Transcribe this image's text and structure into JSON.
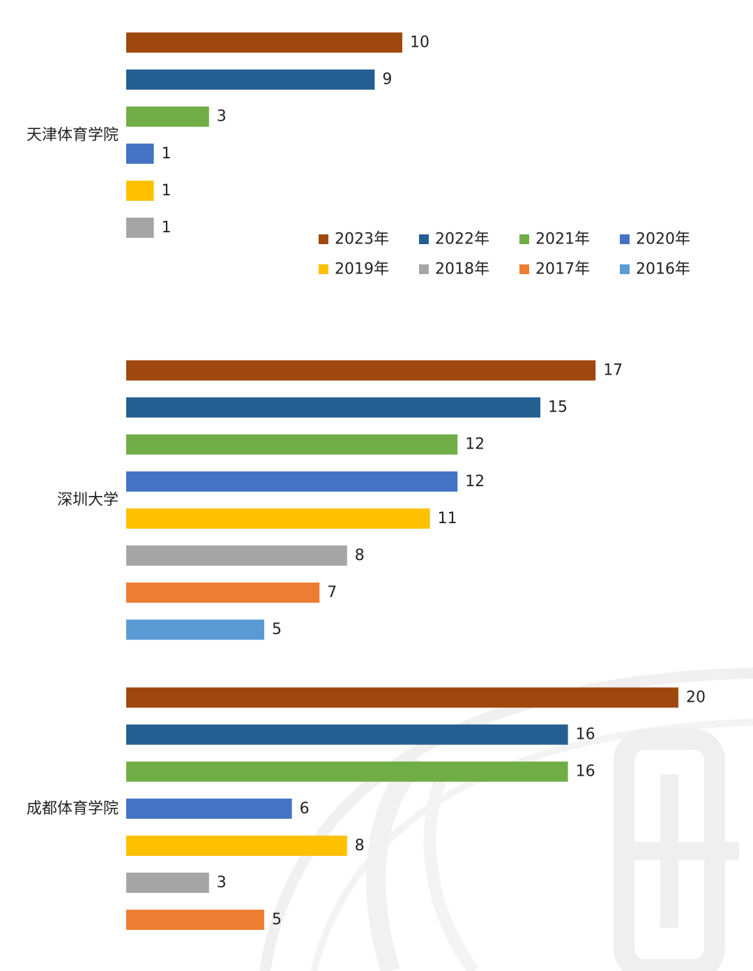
{
  "chart_data": {
    "type": "bar",
    "orientation": "horizontal",
    "legend": {
      "placement": "right, below first group",
      "entries": [
        {
          "name": "2023年",
          "color": "#9e480e"
        },
        {
          "name": "2022年",
          "color": "#255e91"
        },
        {
          "name": "2021年",
          "color": "#70ad47"
        },
        {
          "name": "2020年",
          "color": "#4472c4"
        },
        {
          "name": "2019年",
          "color": "#ffc000"
        },
        {
          "name": "2018年",
          "color": "#a5a5a5"
        },
        {
          "name": "2017年",
          "color": "#ed7d31"
        },
        {
          "name": "2016年",
          "color": "#5b9bd5"
        }
      ]
    },
    "grid": false,
    "groups": [
      {
        "category": "天津体育学院",
        "bars": [
          {
            "series": "2023年",
            "value": 10
          },
          {
            "series": "2022年",
            "value": 9
          },
          {
            "series": "2021年",
            "value": 3
          },
          {
            "series": "2020年",
            "value": 1
          },
          {
            "series": "2019年",
            "value": 1
          },
          {
            "series": "2018年",
            "value": 1
          }
        ]
      },
      {
        "category": "深圳大学",
        "bars": [
          {
            "series": "2023年",
            "value": 17
          },
          {
            "series": "2022年",
            "value": 15
          },
          {
            "series": "2021年",
            "value": 12
          },
          {
            "series": "2020年",
            "value": 12
          },
          {
            "series": "2019年",
            "value": 11
          },
          {
            "series": "2018年",
            "value": 8
          },
          {
            "series": "2017年",
            "value": 7
          },
          {
            "series": "2016年",
            "value": 5
          }
        ]
      },
      {
        "category": "成都体育学院",
        "bars": [
          {
            "series": "2023年",
            "value": 20
          },
          {
            "series": "2022年",
            "value": 16
          },
          {
            "series": "2021年",
            "value": 16
          },
          {
            "series": "2020年",
            "value": 6
          },
          {
            "series": "2019年",
            "value": 8
          },
          {
            "series": "2018年",
            "value": 3
          },
          {
            "series": "2017年",
            "value": 5
          }
        ]
      }
    ]
  }
}
